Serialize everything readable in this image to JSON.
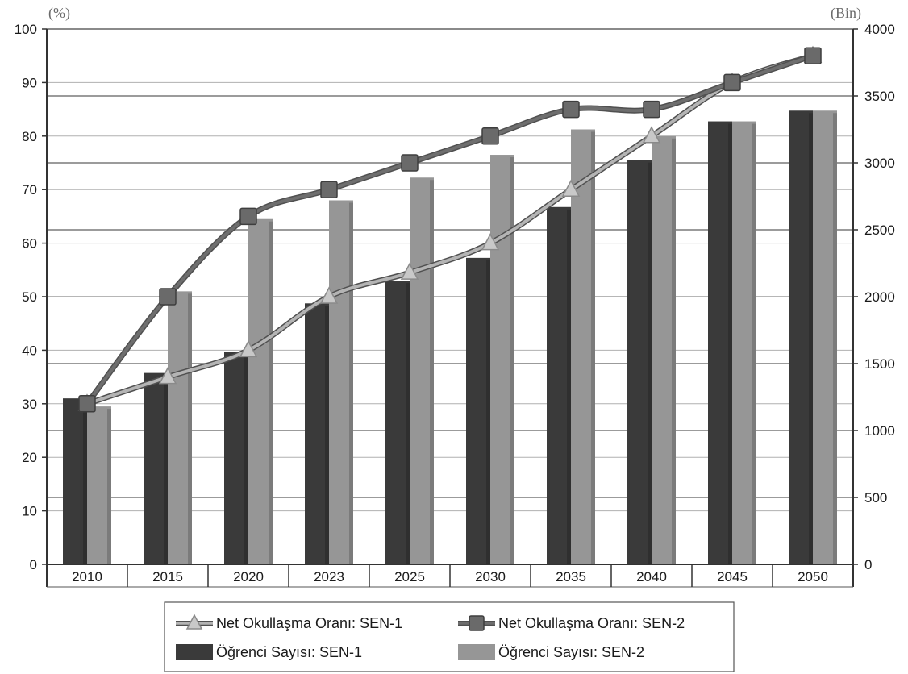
{
  "chart_data": {
    "type": "bar",
    "title": "",
    "y_left_unit": "(%)",
    "y_right_unit": "(Bin)",
    "categories": [
      "2010",
      "2015",
      "2020",
      "2023",
      "2025",
      "2030",
      "2035",
      "2040",
      "2045",
      "2050"
    ],
    "y_left_range": [
      0,
      100
    ],
    "y_left_ticks": [
      "0",
      "10",
      "20",
      "30",
      "40",
      "50",
      "60",
      "70",
      "80",
      "90",
      "100"
    ],
    "y_right_range": [
      0,
      4000
    ],
    "y_right_ticks": [
      "0",
      "500",
      "1000",
      "1500",
      "2000",
      "2500",
      "3000",
      "3500",
      "4000"
    ],
    "grid": true,
    "legend_position": "bottom",
    "series": [
      {
        "name": "Öğrenci Sayısı: SEN-1",
        "kind": "bar",
        "axis": "right",
        "color": "#3a3a3a",
        "values": [
          1240,
          1430,
          1590,
          1950,
          2120,
          2290,
          2670,
          3020,
          3310,
          3390
        ]
      },
      {
        "name": "Öğrenci Sayısı: SEN-2",
        "kind": "bar",
        "axis": "right",
        "color": "#969696",
        "values": [
          1180,
          2040,
          2580,
          2720,
          2890,
          3060,
          3250,
          3200,
          3310,
          3390
        ]
      },
      {
        "name": "Net Okullaşma Oranı: SEN-1",
        "kind": "line",
        "axis": "left",
        "color": "#b4b4b4",
        "marker": "triangle",
        "values": [
          30,
          35,
          40,
          50,
          54.5,
          60,
          70,
          80,
          90,
          95
        ]
      },
      {
        "name": "Net Okullaşma Oranı: SEN-2",
        "kind": "line",
        "axis": "left",
        "color": "#6e6e6e",
        "marker": "square",
        "values": [
          30,
          50,
          65,
          70,
          75,
          80,
          85,
          85,
          90,
          95
        ]
      }
    ]
  }
}
